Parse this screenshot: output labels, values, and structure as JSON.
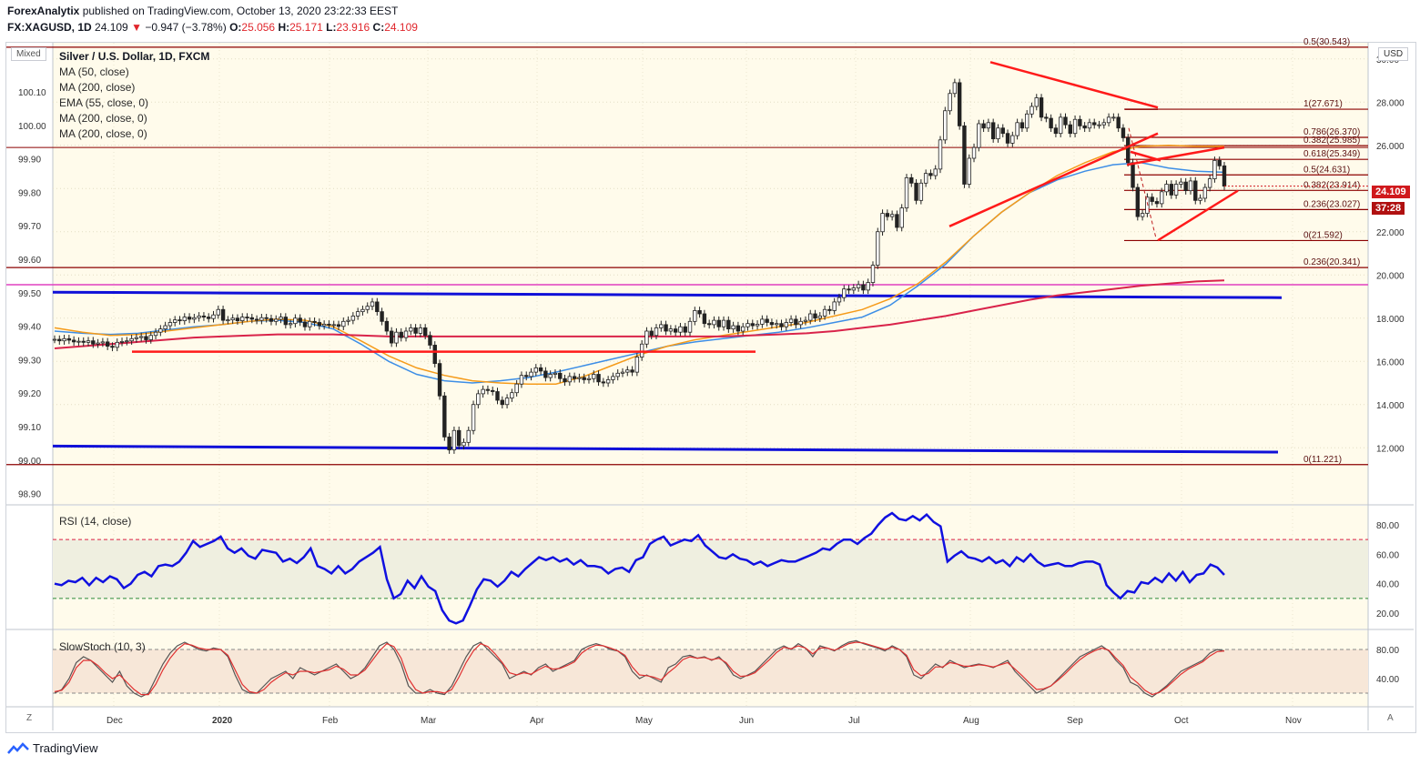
{
  "header": {
    "author": "ForexAnalytix",
    "published": "published on TradingView.com, October 13, 2020 23:22:33 EEST",
    "symbol": "FX:XAGUSD, 1D",
    "last": "24.109",
    "change_arrow": "▼",
    "change": "−0.947 (−3.78%)",
    "o_label": "O:",
    "o": "25.056",
    "h_label": "H:",
    "h": "25.171",
    "l_label": "L:",
    "l": "23.916",
    "c_label": "C:",
    "c": "24.109"
  },
  "scale_mode": "Mixed",
  "currency": "USD",
  "legend": {
    "title": "Silver / U.S. Dollar, 1D, FXCM",
    "items": [
      "MA (50, close)",
      "MA (200, close)",
      "EMA (55, close, 0)",
      "MA (200, close, 0)",
      "MA (200, close, 0)"
    ]
  },
  "last_price_tag": "24.109",
  "countdown_tag": "37:28",
  "rsi_label": "RSI (14, close)",
  "stoch_label": "SlowStoch (10, 3)",
  "footer_brand": "TradingView",
  "corner_left": "Z",
  "corner_right": "A",
  "colors": {
    "up": "#1a1a1a",
    "down": "#1a1a1a",
    "ma50": "#3d8ee6",
    "ema55": "#f59b1a",
    "ma200": "#d9234a",
    "trend_red": "#ff1a1a",
    "blue_lines": "#1010d8",
    "fib": "#8b0000",
    "magenta": "#e040c0",
    "rsi": "#1010e0",
    "stoch_k": "#555555",
    "stoch_d": "#e03030"
  },
  "chart_data": [
    {
      "type": "candlestick",
      "title": "Silver / U.S. Dollar, 1D, FXCM",
      "x_ticks": [
        "Dec",
        "2020",
        "Feb",
        "Mar",
        "Apr",
        "May",
        "Jun",
        "Jul",
        "Aug",
        "Sep",
        "Oct",
        "Nov"
      ],
      "right_axis_ticks": [
        "30.00",
        "28.000",
        "26.000",
        "24.000",
        "22.000",
        "20.000",
        "18.000",
        "16.000",
        "14.000",
        "12.000"
      ],
      "left_axis_ticks": [
        "100.10",
        "100.00",
        "99.90",
        "99.80",
        "99.70",
        "99.60",
        "99.50",
        "99.40",
        "99.30",
        "99.20",
        "99.10",
        "99.00",
        "98.90"
      ],
      "ylim": [
        11.0,
        31.0
      ],
      "fib_levels": [
        {
          "label": "0.5(30.543)",
          "value": 30.543
        },
        {
          "label": "1(27.671)",
          "value": 27.671
        },
        {
          "label": "0.786(26.370)",
          "value": 26.37
        },
        {
          "label": "0.382(25.985)",
          "value": 25.985
        },
        {
          "label": "0.618(25.349)",
          "value": 25.349
        },
        {
          "label": "0.5(24.631)",
          "value": 24.631
        },
        {
          "label": "0.382(23.914)",
          "value": 23.914
        },
        {
          "label": "0.236(23.027)",
          "value": 23.027
        },
        {
          "label": "0(21.592)",
          "value": 21.592
        },
        {
          "label": "0.236(20.341)",
          "value": 20.341
        },
        {
          "label": "0(11.221)",
          "value": 11.221
        }
      ],
      "closes": [
        17.02,
        16.95,
        17.05,
        16.98,
        16.9,
        16.93,
        16.88,
        16.95,
        16.8,
        16.85,
        16.9,
        16.7,
        16.65,
        16.88,
        16.92,
        16.95,
        17.05,
        17.1,
        17.15,
        17.0,
        17.2,
        17.35,
        17.5,
        17.65,
        17.8,
        17.92,
        17.88,
        18.05,
        17.95,
        18.02,
        18.1,
        18.05,
        17.98,
        18.15,
        18.4,
        17.9,
        17.92,
        18.0,
        17.88,
        18.05,
        18.02,
        17.95,
        17.9,
        18.02,
        17.98,
        17.85,
        17.95,
        18.05,
        17.7,
        17.75,
        18.0,
        17.82,
        17.6,
        17.85,
        17.8,
        17.65,
        17.72,
        17.7,
        17.7,
        17.62,
        17.85,
        17.9,
        18.1,
        18.3,
        18.4,
        18.55,
        18.75,
        18.3,
        17.85,
        17.4,
        16.85,
        17.35,
        17.1,
        17.4,
        17.55,
        17.3,
        17.55,
        17.2,
        16.75,
        15.9,
        14.4,
        12.5,
        11.9,
        12.8,
        12.1,
        12.25,
        12.8,
        14.0,
        14.5,
        14.7,
        14.65,
        14.6,
        14.2,
        14.0,
        14.3,
        14.55,
        14.95,
        15.35,
        15.3,
        15.5,
        15.7,
        15.55,
        15.25,
        15.4,
        15.45,
        15.2,
        15.05,
        15.3,
        15.2,
        15.25,
        15.15,
        15.2,
        15.4,
        15.05,
        15.0,
        15.15,
        15.3,
        15.45,
        15.5,
        15.6,
        15.5,
        16.2,
        16.8,
        17.4,
        17.2,
        17.55,
        17.7,
        17.4,
        17.5,
        17.35,
        17.6,
        17.35,
        17.85,
        18.35,
        18.2,
        17.75,
        17.7,
        17.9,
        17.6,
        17.9,
        17.5,
        17.65,
        17.4,
        17.6,
        17.75,
        17.65,
        17.72,
        17.95,
        17.8,
        17.7,
        17.75,
        17.6,
        17.8,
        17.95,
        17.7,
        17.85,
        17.9,
        18.2,
        18.0,
        18.1,
        18.4,
        18.35,
        18.75,
        18.95,
        19.35,
        19.3,
        19.4,
        19.55,
        19.3,
        19.65,
        20.45,
        22.0,
        22.85,
        22.7,
        22.8,
        22.2,
        23.1,
        24.5,
        24.25,
        23.45,
        24.25,
        24.7,
        24.6,
        24.9,
        26.25,
        27.6,
        28.4,
        28.9,
        26.9,
        24.2,
        25.4,
        25.9,
        27.0,
        26.8,
        27.05,
        26.3,
        26.8,
        26.55,
        26.1,
        26.45,
        27.05,
        26.8,
        27.45,
        27.8,
        28.2,
        27.3,
        27.25,
        26.8,
        26.55,
        27.3,
        26.95,
        26.55,
        27.2,
        26.9,
        26.8,
        27.05,
        26.95,
        26.95,
        27.05,
        27.3,
        27.3,
        26.8,
        26.35,
        25.2,
        24.05,
        22.7,
        22.85,
        23.6,
        23.4,
        23.3,
        23.85,
        24.2,
        23.7,
        24.2,
        24.3,
        23.9,
        24.35,
        23.45,
        23.55,
        24.05,
        24.45,
        25.3,
        25.05,
        24.11
      ],
      "series": [
        {
          "name": "MA (50, close)",
          "values": [
            17.4,
            17.3,
            17.25,
            17.3,
            17.45,
            17.6,
            17.7,
            17.85,
            17.9,
            17.8,
            17.5,
            16.8,
            16.0,
            15.4,
            15.1,
            15.0,
            15.1,
            15.25,
            15.5,
            15.8,
            16.1,
            16.4,
            16.7,
            16.9,
            17.05,
            17.2,
            17.35,
            17.55,
            17.8,
            18.05,
            18.6,
            19.5,
            20.5,
            21.8,
            22.9,
            23.8,
            24.4,
            24.8,
            25.1,
            25.2,
            24.95,
            24.8,
            24.75
          ]
        },
        {
          "name": "EMA (55, close, 0)",
          "values": [
            17.55,
            17.35,
            17.2,
            17.25,
            17.4,
            17.55,
            17.7,
            17.85,
            17.95,
            17.9,
            17.6,
            16.95,
            16.25,
            15.7,
            15.35,
            15.1,
            15.0,
            14.95,
            14.95,
            15.3,
            15.8,
            16.3,
            16.7,
            17.0,
            17.2,
            17.4,
            17.6,
            17.8,
            18.1,
            18.4,
            18.9,
            19.6,
            20.6,
            21.8,
            22.9,
            23.8,
            24.6,
            25.2,
            25.7,
            25.95,
            26.0,
            25.95,
            25.95
          ]
        },
        {
          "name": "MA (200, close)",
          "values": [
            16.6,
            16.7,
            16.8,
            16.9,
            17.0,
            17.1,
            17.15,
            17.2,
            17.25,
            17.25,
            17.25,
            17.2,
            17.15,
            17.15,
            17.15,
            17.15,
            17.15,
            17.15,
            17.15,
            17.15,
            17.15,
            17.15,
            17.15,
            17.15,
            17.15,
            17.2,
            17.25,
            17.3,
            17.4,
            17.55,
            17.7,
            17.9,
            18.1,
            18.35,
            18.6,
            18.85,
            19.05,
            19.2,
            19.35,
            19.5,
            19.6,
            19.7,
            19.75
          ]
        }
      ]
    },
    {
      "type": "line",
      "title": "RSI (14, close)",
      "right_axis_ticks": [
        "80.00",
        "60.00",
        "40.00",
        "20.00"
      ],
      "ylim": [
        15,
        92
      ],
      "guides": [
        70,
        30
      ],
      "values": [
        40,
        39,
        42,
        41,
        44,
        39,
        44,
        41,
        45,
        43,
        37,
        40,
        46,
        48,
        45,
        52,
        53,
        52,
        55,
        61,
        69,
        65,
        67,
        69,
        72,
        64,
        61,
        64,
        59,
        57,
        63,
        62,
        61,
        55,
        57,
        54,
        58,
        64,
        52,
        50,
        47,
        52,
        47,
        50,
        55,
        58,
        61,
        65,
        43,
        30,
        33,
        42,
        37,
        45,
        38,
        35,
        22,
        15,
        13,
        15,
        25,
        36,
        43,
        42,
        38,
        42,
        48,
        45,
        50,
        54,
        58,
        56,
        58,
        55,
        57,
        53,
        56,
        52,
        52,
        51,
        47,
        50,
        51,
        48,
        56,
        58,
        67,
        70,
        72,
        66,
        68,
        70,
        69,
        73,
        66,
        62,
        58,
        57,
        60,
        57,
        56,
        53,
        55,
        52,
        54,
        56,
        55,
        55,
        57,
        59,
        61,
        64,
        63,
        67,
        70,
        70,
        67,
        71,
        74,
        80,
        85,
        88,
        84,
        83,
        86,
        83,
        87,
        82,
        79,
        55,
        59,
        62,
        58,
        57,
        55,
        58,
        54,
        56,
        52,
        58,
        55,
        60,
        55,
        52,
        53,
        54,
        52,
        52,
        54,
        55,
        55,
        53,
        39,
        34,
        30,
        35,
        34,
        41,
        40,
        44,
        41,
        47,
        42,
        48,
        41,
        46,
        47,
        53,
        51,
        46
      ]
    },
    {
      "type": "line",
      "title": "SlowStoch (10, 3)",
      "right_axis_ticks": [
        "80.00",
        "40.00"
      ],
      "ylim": [
        10,
        97
      ],
      "guides": [
        80,
        20
      ],
      "series": [
        {
          "name": "%K",
          "values": [
            20,
            25,
            40,
            62,
            70,
            65,
            55,
            45,
            35,
            50,
            30,
            20,
            15,
            20,
            40,
            60,
            75,
            85,
            90,
            85,
            80,
            78,
            82,
            80,
            70,
            45,
            25,
            20,
            20,
            30,
            40,
            45,
            50,
            40,
            55,
            50,
            45,
            50,
            55,
            60,
            50,
            40,
            45,
            55,
            70,
            85,
            90,
            80,
            60,
            30,
            20,
            20,
            25,
            20,
            18,
            30,
            50,
            70,
            85,
            90,
            80,
            70,
            60,
            40,
            45,
            50,
            45,
            55,
            60,
            50,
            55,
            60,
            65,
            80,
            85,
            88,
            85,
            80,
            78,
            70,
            50,
            40,
            45,
            40,
            35,
            55,
            60,
            70,
            72,
            68,
            70,
            65,
            70,
            60,
            45,
            40,
            45,
            50,
            60,
            70,
            80,
            85,
            80,
            88,
            82,
            70,
            85,
            82,
            78,
            85,
            90,
            92,
            88,
            85,
            82,
            78,
            85,
            80,
            70,
            45,
            40,
            50,
            60,
            55,
            65,
            60,
            55,
            58,
            60,
            58,
            55,
            60,
            65,
            50,
            40,
            30,
            20,
            25,
            30,
            40,
            50,
            60,
            70,
            75,
            80,
            85,
            78,
            65,
            55,
            35,
            30,
            20,
            15,
            22,
            30,
            40,
            50,
            55,
            60,
            65,
            75,
            80,
            78
          ]
        },
        {
          "name": "%D",
          "values": [
            22,
            24,
            35,
            55,
            65,
            65,
            58,
            48,
            40,
            45,
            35,
            25,
            18,
            18,
            32,
            52,
            68,
            80,
            88,
            86,
            82,
            80,
            80,
            80,
            72,
            52,
            32,
            22,
            20,
            25,
            35,
            42,
            48,
            45,
            50,
            50,
            48,
            50,
            52,
            57,
            53,
            45,
            45,
            52,
            65,
            78,
            88,
            84,
            68,
            40,
            25,
            20,
            22,
            22,
            20,
            25,
            42,
            62,
            78,
            88,
            84,
            74,
            62,
            48,
            45,
            48,
            46,
            52,
            57,
            53,
            54,
            58,
            63,
            75,
            82,
            86,
            85,
            82,
            78,
            72,
            56,
            45,
            44,
            42,
            38,
            48,
            56,
            66,
            70,
            68,
            69,
            66,
            68,
            62,
            50,
            43,
            44,
            48,
            57,
            66,
            76,
            83,
            81,
            85,
            82,
            74,
            82,
            82,
            79,
            83,
            88,
            90,
            89,
            86,
            83,
            80,
            83,
            80,
            72,
            52,
            44,
            47,
            56,
            56,
            62,
            60,
            57,
            57,
            59,
            58,
            56,
            59,
            62,
            53,
            44,
            34,
            25,
            26,
            30,
            38,
            47,
            57,
            66,
            73,
            78,
            82,
            79,
            68,
            58,
            42,
            34,
            24,
            18,
            21,
            28,
            37,
            46,
            53,
            58,
            63,
            71,
            77,
            78
          ]
        }
      ]
    }
  ]
}
